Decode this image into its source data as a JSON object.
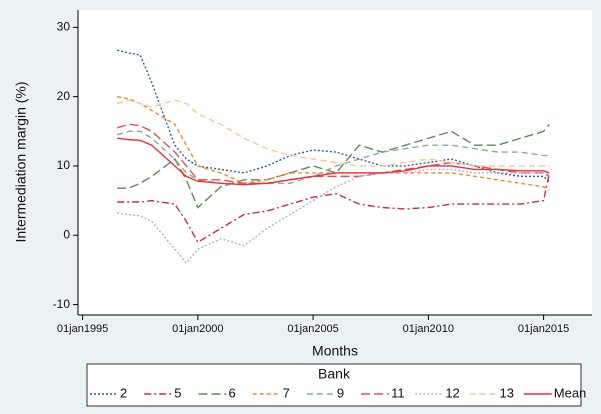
{
  "chart_data": {
    "type": "line",
    "xlabel": "Months",
    "ylabel": "Intermediation margin (%)",
    "legend_title": "Bank",
    "x": [
      1996.5,
      1997,
      1997.5,
      1998,
      1999,
      1999.5,
      2000,
      2001,
      2002,
      2003,
      2004,
      2005,
      2006,
      2007,
      2008,
      2009,
      2010,
      2011,
      2012,
      2013,
      2014,
      2015,
      2015.25
    ],
    "xlim": [
      1994.8,
      2017.1
    ],
    "xticks": [
      {
        "value": 1995,
        "label": "01jan1995"
      },
      {
        "value": 2000,
        "label": "01jan2000"
      },
      {
        "value": 2005,
        "label": "01jan2005"
      },
      {
        "value": 2010,
        "label": "01jan2010"
      },
      {
        "value": 2015,
        "label": "01jan2015"
      }
    ],
    "ylim": [
      -11.5,
      32.5
    ],
    "yticks": [
      -10,
      0,
      10,
      20,
      30
    ],
    "grid": false,
    "legend": "bottom",
    "series": [
      {
        "name": "2",
        "color": "#2f5f9e",
        "dash": "dotted",
        "values": [
          26.7,
          26.3,
          26,
          22,
          13,
          11,
          10,
          9.5,
          9,
          10,
          11.5,
          12.3,
          12,
          11,
          10,
          10,
          10.5,
          11,
          10,
          9,
          8.5,
          8.5,
          7.8
        ]
      },
      {
        "name": "5",
        "color": "#c8323a",
        "dash": "dashdot",
        "values": [
          4.8,
          4.8,
          4.8,
          5,
          4.5,
          2,
          -1,
          1,
          3,
          3.5,
          4.5,
          5.5,
          6,
          4.5,
          4,
          3.8,
          4,
          4.5,
          4.5,
          4.5,
          4.5,
          5,
          9
        ]
      },
      {
        "name": "6",
        "color": "#5f8a5a",
        "dash": "longdash",
        "values": [
          6.8,
          6.8,
          7.5,
          8.5,
          11,
          8,
          4,
          7,
          8,
          8,
          9,
          10,
          9,
          13,
          12,
          13,
          14,
          15,
          13,
          13,
          14,
          15,
          16
        ]
      },
      {
        "name": "7",
        "color": "#f08a2c",
        "dash": "shortdash",
        "values": [
          20,
          19.7,
          19,
          18,
          16,
          13,
          10,
          9,
          7.5,
          8,
          9,
          9,
          9,
          9,
          9,
          9,
          9,
          9,
          8.5,
          8,
          7.5,
          7,
          6.5
        ]
      },
      {
        "name": "9",
        "color": "#8fa89a",
        "dash": "dash",
        "values": [
          14.5,
          15,
          15,
          14,
          11,
          9,
          8,
          7.5,
          7.5,
          7.5,
          7.5,
          8.5,
          10,
          11,
          12,
          12.5,
          13,
          13,
          12.5,
          12,
          12,
          11.5,
          11.5
        ]
      },
      {
        "name": "11",
        "color": "#e0505a",
        "dash": "longdash",
        "values": [
          15.5,
          16,
          15.8,
          15,
          12,
          10,
          8,
          8,
          7.5,
          7.5,
          8,
          8.5,
          8.5,
          8.5,
          9,
          9.5,
          10,
          10.5,
          10,
          9.5,
          9,
          9,
          8.5
        ]
      },
      {
        "name": "12",
        "color": "#a9b4d6",
        "dash": "dotted",
        "values": [
          3.2,
          3,
          2.8,
          2,
          -2,
          -4,
          -2,
          -0.5,
          -1.5,
          1,
          3,
          5,
          7,
          8.5,
          9,
          9,
          9.5,
          9.5,
          9,
          9,
          9,
          9,
          9
        ]
      },
      {
        "name": "13",
        "color": "#f2c89a",
        "dash": "dash",
        "values": [
          19,
          19.5,
          19,
          18.5,
          19.5,
          19,
          17.5,
          16,
          14,
          12.5,
          11.5,
          11,
          10.5,
          10,
          10,
          10.5,
          11,
          10.5,
          10,
          10,
          10,
          10,
          10
        ]
      },
      {
        "name": "Mean",
        "color": "#e8323c",
        "dash": "solid",
        "values": [
          14,
          13.8,
          13.7,
          13,
          10,
          8.5,
          7.8,
          7.5,
          7.3,
          7.5,
          8,
          8.5,
          9,
          9,
          9,
          9.3,
          10,
          10,
          9.5,
          9.5,
          9.3,
          9.3,
          9
        ]
      }
    ]
  }
}
